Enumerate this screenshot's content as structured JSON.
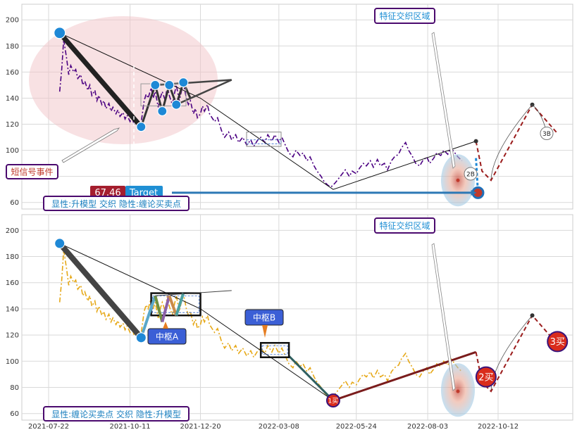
{
  "chart_data": [
    {
      "type": "line",
      "panel": "top",
      "ylim": [
        55,
        212
      ],
      "y_ticks": [
        "60",
        "80",
        "100",
        "120",
        "140",
        "160",
        "180",
        "200"
      ],
      "grid": true,
      "price_line_color": "#4b0082",
      "price": [
        [
          "2021-08-02",
          145
        ],
        [
          "2021-08-04",
          162
        ],
        [
          "2021-08-06",
          185
        ],
        [
          "2021-08-09",
          170
        ],
        [
          "2021-08-11",
          158
        ],
        [
          "2021-08-13",
          165
        ],
        [
          "2021-08-16",
          160
        ],
        [
          "2021-08-18",
          162
        ],
        [
          "2021-08-20",
          155
        ],
        [
          "2021-08-23",
          158
        ],
        [
          "2021-08-25",
          150
        ],
        [
          "2021-08-27",
          153
        ],
        [
          "2021-08-30",
          146
        ],
        [
          "2021-09-01",
          150
        ],
        [
          "2021-09-03",
          142
        ],
        [
          "2021-09-06",
          146
        ],
        [
          "2021-09-08",
          138
        ],
        [
          "2021-09-10",
          142
        ],
        [
          "2021-09-13",
          135
        ],
        [
          "2021-09-15",
          138
        ],
        [
          "2021-09-17",
          132
        ],
        [
          "2021-09-20",
          136
        ],
        [
          "2021-09-22",
          130
        ],
        [
          "2021-09-24",
          133
        ],
        [
          "2021-09-27",
          128
        ],
        [
          "2021-09-29",
          131
        ],
        [
          "2021-10-01",
          126
        ],
        [
          "2021-10-04",
          129
        ],
        [
          "2021-10-06",
          124
        ],
        [
          "2021-10-08",
          127
        ],
        [
          "2021-10-11",
          122
        ],
        [
          "2021-10-13",
          125
        ],
        [
          "2021-10-15",
          120
        ],
        [
          "2021-10-18",
          122
        ],
        [
          "2021-10-20",
          118
        ],
        [
          "2021-10-22",
          121
        ],
        [
          "2021-10-25",
          138
        ],
        [
          "2021-10-27",
          143
        ],
        [
          "2021-10-29",
          140
        ],
        [
          "2021-11-01",
          148
        ],
        [
          "2021-11-03",
          140
        ],
        [
          "2021-11-05",
          145
        ],
        [
          "2021-11-08",
          133
        ],
        [
          "2021-11-10",
          140
        ],
        [
          "2021-11-12",
          145
        ],
        [
          "2021-11-15",
          138
        ],
        [
          "2021-11-17",
          150
        ],
        [
          "2021-11-19",
          142
        ],
        [
          "2021-11-22",
          135
        ],
        [
          "2021-11-24",
          143
        ],
        [
          "2021-11-26",
          150
        ],
        [
          "2021-11-29",
          138
        ],
        [
          "2021-12-01",
          145
        ],
        [
          "2021-12-03",
          152
        ],
        [
          "2021-12-06",
          140
        ],
        [
          "2021-12-08",
          135
        ],
        [
          "2021-12-10",
          138
        ],
        [
          "2021-12-13",
          128
        ],
        [
          "2021-12-15",
          132
        ],
        [
          "2021-12-17",
          125
        ],
        [
          "2021-12-20",
          128
        ],
        [
          "2021-12-22",
          134
        ],
        [
          "2021-12-24",
          130
        ],
        [
          "2021-12-27",
          135
        ],
        [
          "2021-12-29",
          128
        ],
        [
          "2022-01-03",
          122
        ],
        [
          "2022-01-06",
          125
        ],
        [
          "2022-01-10",
          115
        ],
        [
          "2022-01-13",
          110
        ],
        [
          "2022-01-17",
          114
        ],
        [
          "2022-01-20",
          108
        ],
        [
          "2022-01-24",
          112
        ],
        [
          "2022-01-27",
          106
        ],
        [
          "2022-01-31",
          110
        ],
        [
          "2022-02-04",
          104
        ],
        [
          "2022-02-08",
          108
        ],
        [
          "2022-02-11",
          103
        ],
        [
          "2022-02-15",
          108
        ],
        [
          "2022-02-18",
          110
        ],
        [
          "2022-02-22",
          106
        ],
        [
          "2022-02-25",
          112
        ],
        [
          "2022-03-01",
          107
        ],
        [
          "2022-03-04",
          112
        ],
        [
          "2022-03-08",
          106
        ],
        [
          "2022-03-11",
          110
        ],
        [
          "2022-03-15",
          103
        ],
        [
          "2022-03-18",
          98
        ],
        [
          "2022-03-22",
          95
        ],
        [
          "2022-03-25",
          100
        ],
        [
          "2022-03-29",
          96
        ],
        [
          "2022-04-01",
          98
        ],
        [
          "2022-04-05",
          92
        ],
        [
          "2022-04-08",
          95
        ],
        [
          "2022-04-12",
          88
        ],
        [
          "2022-04-15",
          84
        ],
        [
          "2022-04-19",
          80
        ],
        [
          "2022-04-22",
          76
        ],
        [
          "2022-04-26",
          73
        ],
        [
          "2022-04-29",
          72
        ],
        [
          "2022-05-03",
          75
        ],
        [
          "2022-05-06",
          78
        ],
        [
          "2022-05-10",
          82
        ],
        [
          "2022-05-13",
          85
        ],
        [
          "2022-05-17",
          80
        ],
        [
          "2022-05-20",
          84
        ],
        [
          "2022-05-24",
          82
        ],
        [
          "2022-05-27",
          86
        ],
        [
          "2022-05-31",
          90
        ],
        [
          "2022-06-03",
          88
        ],
        [
          "2022-06-07",
          92
        ],
        [
          "2022-06-10",
          87
        ],
        [
          "2022-06-14",
          93
        ],
        [
          "2022-06-17",
          88
        ],
        [
          "2022-06-21",
          90
        ],
        [
          "2022-06-24",
          85
        ],
        [
          "2022-06-28",
          92
        ],
        [
          "2022-07-01",
          95
        ],
        [
          "2022-07-05",
          97
        ],
        [
          "2022-07-08",
          102
        ],
        [
          "2022-07-12",
          106
        ],
        [
          "2022-07-15",
          100
        ],
        [
          "2022-07-19",
          95
        ],
        [
          "2022-07-22",
          90
        ],
        [
          "2022-07-26",
          88
        ],
        [
          "2022-07-29",
          92
        ],
        [
          "2022-08-02",
          95
        ],
        [
          "2022-08-05",
          90
        ],
        [
          "2022-08-09",
          94
        ],
        [
          "2022-08-12",
          98
        ],
        [
          "2022-08-16",
          96
        ],
        [
          "2022-08-19",
          100
        ],
        [
          "2022-08-23",
          97
        ],
        [
          "2022-08-26",
          102
        ],
        [
          "2022-08-30",
          98
        ],
        [
          "2022-09-02",
          95
        ],
        [
          "2022-09-06",
          92
        ]
      ],
      "thick_stroke": [
        [
          "2021-08-02",
          190
        ],
        [
          "2021-10-22",
          118
        ]
      ],
      "thin_trend": [
        [
          "2021-08-02",
          190
        ],
        [
          "2021-12-20",
          140
        ],
        [
          "2022-05-01",
          70
        ],
        [
          "2022-09-20",
          107
        ]
      ],
      "pattern_vertices": [
        [
          "2021-10-22",
          118
        ],
        [
          "2021-11-05",
          150
        ],
        [
          "2021-11-12",
          130
        ],
        [
          "2021-11-19",
          150
        ],
        [
          "2021-11-26",
          135
        ],
        [
          "2021-12-03",
          152
        ],
        [
          "2021-12-10",
          140
        ]
      ],
      "triangle_upper": [
        [
          "2021-11-05",
          150
        ],
        [
          "2022-01-20",
          154
        ]
      ],
      "triangle_lower": [
        [
          "2021-11-26",
          135
        ],
        [
          "2022-01-20",
          154
        ]
      ],
      "marker_points": [
        [
          "2021-08-02",
          190
        ],
        [
          "2021-10-22",
          118
        ],
        [
          "2021-11-05",
          150
        ],
        [
          "2021-11-12",
          130
        ],
        [
          "2021-11-19",
          150
        ],
        [
          "2021-11-26",
          135
        ],
        [
          "2021-12-03",
          152
        ]
      ],
      "dashed_target_path": [
        [
          "2022-09-20",
          107
        ],
        [
          "2022-09-26",
          84
        ],
        [
          "2022-10-05",
          77
        ],
        [
          "2022-11-15",
          135
        ],
        [
          "2022-12-10",
          113
        ]
      ],
      "target_value": "67.46",
      "target_label": "Target",
      "target_point": [
        "2022-09-22",
        67.5
      ],
      "labels": {
        "event": "短信号事件",
        "zone": "特征交织区域",
        "legend": "显性:升模型 交织 隐性:缠论买卖点",
        "marker_2b": "2B",
        "marker_3b": "3B"
      }
    },
    {
      "type": "line",
      "panel": "bottom",
      "ylim": [
        55,
        212
      ],
      "y_ticks": [
        "60",
        "80",
        "100",
        "120",
        "140",
        "160",
        "180",
        "200"
      ],
      "x_ticks": [
        "2021-07-22",
        "2021-10-11",
        "2021-12-20",
        "2022-03-08",
        "2022-05-24",
        "2022-08-03",
        "2022-10-12"
      ],
      "grid": true,
      "price_line_color": "#e6a817",
      "pivots": [
        {
          "label": "中枢A",
          "range": [
            "2021-11-01",
            "2021-12-20"
          ],
          "ylim": [
            135,
            152
          ]
        },
        {
          "label": "中枢B",
          "range": [
            "2022-02-18",
            "2022-03-18"
          ],
          "ylim": [
            103,
            114
          ]
        }
      ],
      "buy_points": [
        {
          "label": "1买",
          "point": [
            "2022-05-01",
            70
          ]
        },
        {
          "label": "2买",
          "point": [
            "2022-09-30",
            88
          ]
        },
        {
          "label": "3买",
          "point": [
            "2022-12-10",
            115
          ]
        }
      ],
      "labels": {
        "zone": "特征交织区域",
        "legend": "显性:缠论买卖点 交织 隐性:升模型"
      }
    }
  ]
}
